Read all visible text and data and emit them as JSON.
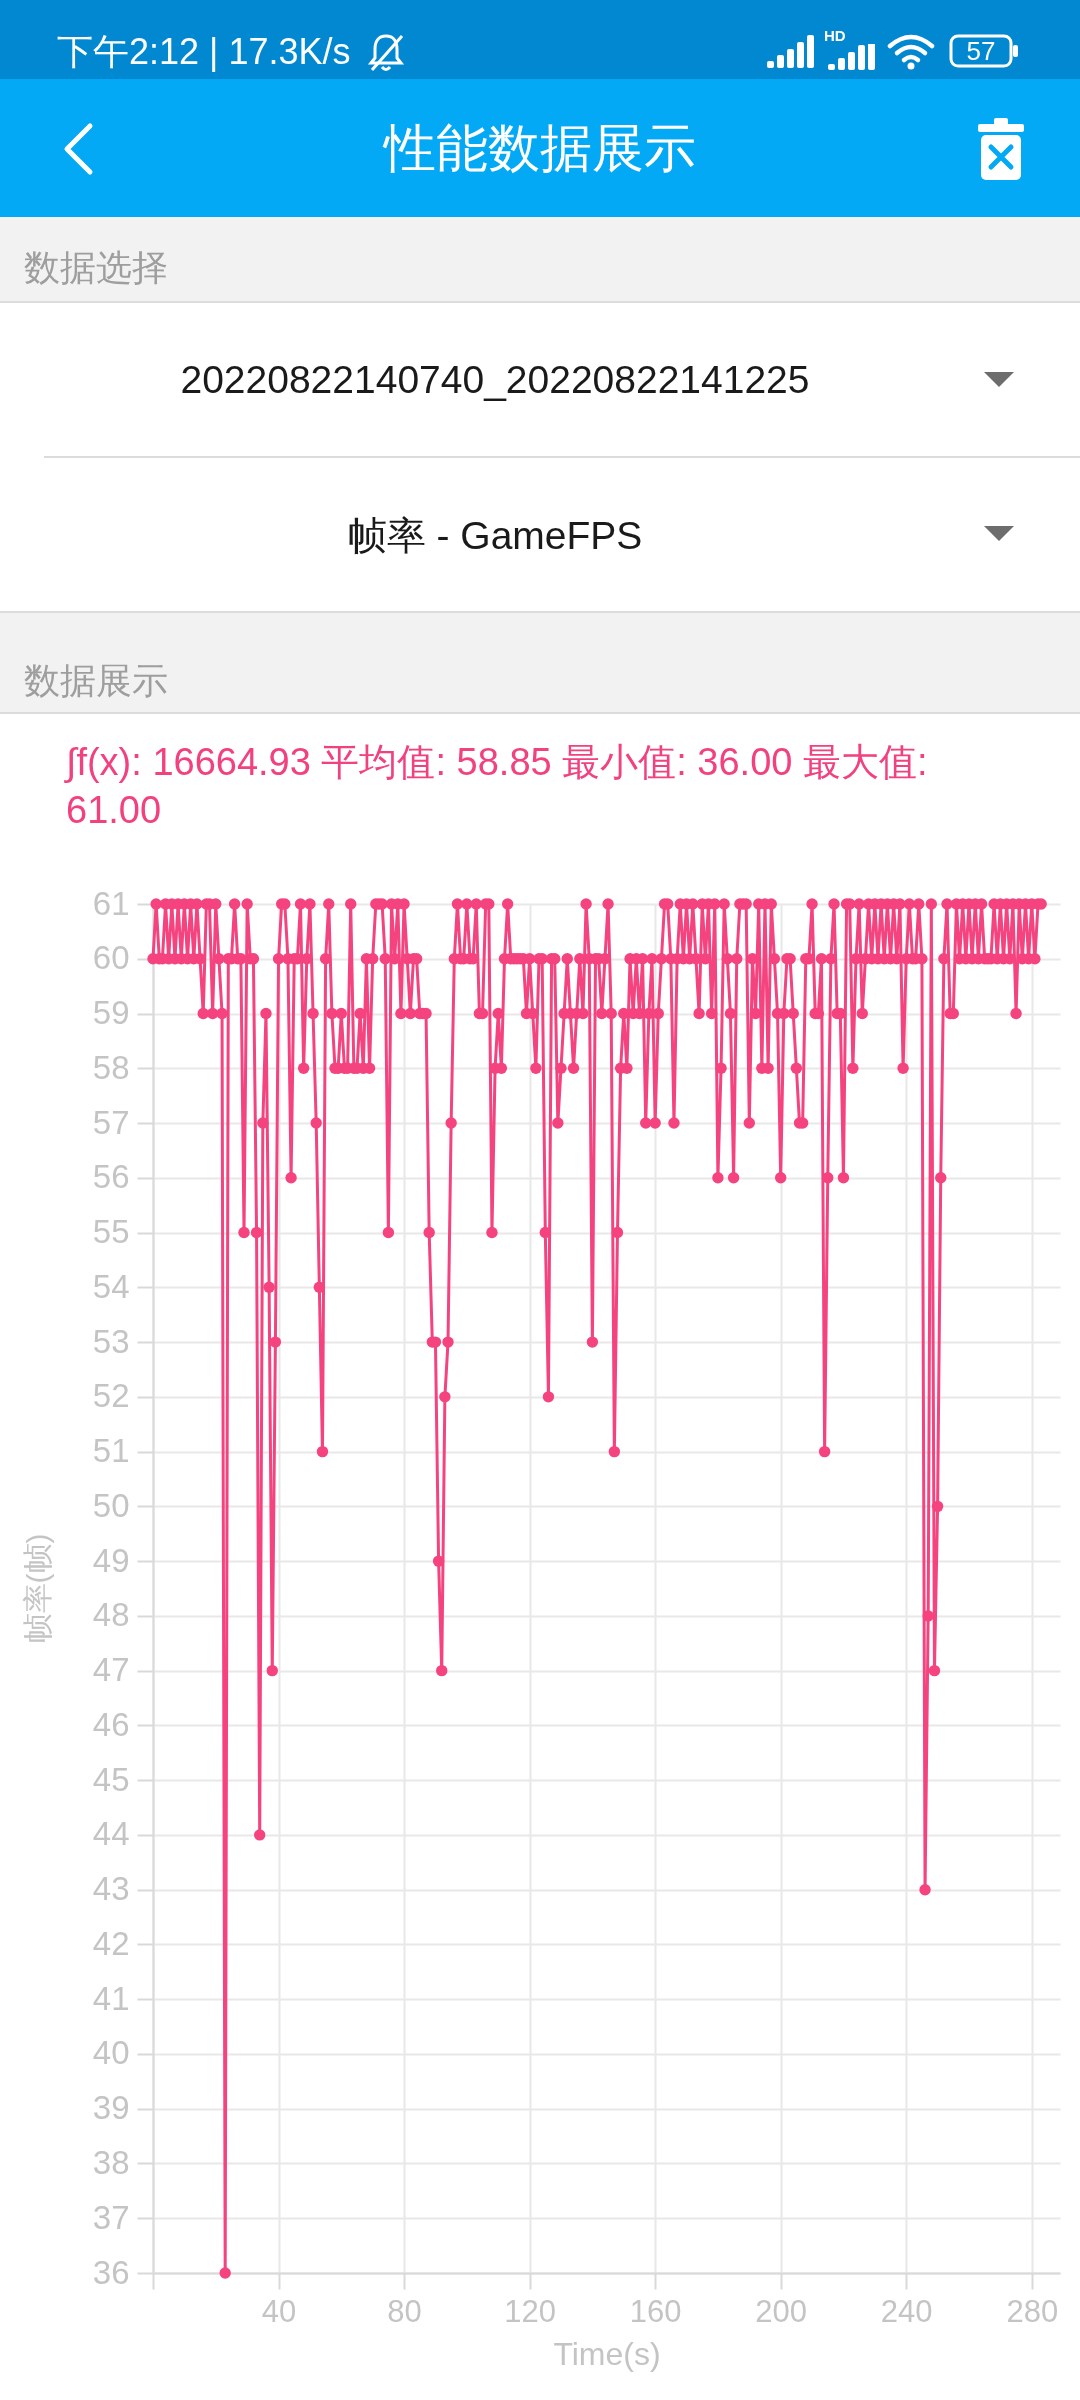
{
  "chart_data": {
    "type": "line",
    "title": "性能数据展示",
    "xlabel": "Time(s)",
    "ylabel": "帧率(帧)",
    "annotations": [
      "下午2:12 | 17.3K/s",
      "HD",
      "57",
      "数据选择",
      "20220822140740_20220822141225",
      "帧率 - GameFPS",
      "数据展示",
      "∫f(x): 16664.93 平均值: 58.85 最小值: 36.00 最大值: 61.00"
    ],
    "x": [
      0,
      1,
      2,
      3,
      4,
      5,
      6,
      7,
      8,
      9,
      10,
      11,
      12,
      13,
      14,
      15,
      16,
      17,
      18,
      19,
      20,
      21,
      22,
      23,
      24,
      25,
      26,
      27,
      28,
      29,
      30,
      31,
      32,
      33,
      34,
      35,
      36,
      37,
      38,
      39,
      40,
      41,
      42,
      43,
      44,
      45,
      46,
      47,
      48,
      49,
      50,
      51,
      52,
      53,
      54,
      55,
      56,
      57,
      58,
      59,
      60,
      61,
      62,
      63,
      64,
      65,
      66,
      67,
      68,
      69,
      70,
      71,
      72,
      73,
      74,
      75,
      76,
      77,
      78,
      79,
      80,
      81,
      82,
      83,
      84,
      85,
      86,
      87,
      88,
      89,
      90,
      91,
      92,
      93,
      94,
      95,
      96,
      97,
      98,
      99,
      100,
      101,
      102,
      103,
      104,
      105,
      106,
      107,
      108,
      109,
      110,
      111,
      112,
      113,
      114,
      115,
      116,
      117,
      118,
      119,
      120,
      121,
      122,
      123,
      124,
      125,
      126,
      127,
      128,
      129,
      130,
      131,
      132,
      133,
      134,
      135,
      136,
      137,
      138,
      139,
      140,
      141,
      142,
      143,
      144,
      145,
      146,
      147,
      148,
      149,
      150,
      151,
      152,
      153,
      154,
      155,
      156,
      157,
      158,
      159,
      160,
      161,
      162,
      163,
      164,
      165,
      166,
      167,
      168,
      169,
      170,
      171,
      172,
      173,
      174,
      175,
      176,
      177,
      178,
      179,
      180,
      181,
      182,
      183,
      184,
      185,
      186,
      187,
      188,
      189,
      190,
      191,
      192,
      193,
      194,
      195,
      196,
      197,
      198,
      199,
      200,
      201,
      202,
      203,
      204,
      205,
      206,
      207,
      208,
      209,
      210,
      211,
      212,
      213,
      214,
      215,
      216,
      217,
      218,
      219,
      220,
      221,
      222,
      223,
      224,
      225,
      226,
      227,
      228,
      229,
      230,
      231,
      232,
      233,
      234,
      235,
      236,
      237,
      238,
      239,
      240,
      241,
      242,
      243,
      244,
      245,
      246,
      247,
      248,
      249,
      250,
      251,
      252,
      253,
      254,
      255,
      256,
      257,
      258,
      259,
      260,
      261,
      262,
      263,
      264,
      265,
      266,
      267,
      268,
      269,
      270,
      271,
      272,
      273,
      274,
      275,
      276,
      277,
      278,
      279,
      280,
      281,
      282,
      283
    ],
    "series": [
      {
        "color": "#f5437f",
        "values": [
          60,
          61,
          60,
          60,
          61,
          60,
          61,
          60,
          61,
          60,
          61,
          60,
          61,
          60,
          61,
          60,
          59,
          61,
          61,
          59,
          61,
          60,
          59,
          36,
          60,
          60,
          61,
          60,
          60,
          55,
          61,
          60,
          60,
          55,
          44,
          57,
          59,
          54,
          47,
          53,
          60,
          61,
          61,
          60,
          56,
          60,
          60,
          61,
          58,
          60,
          61,
          59,
          57,
          54,
          51,
          60,
          61,
          59,
          58,
          58,
          59,
          58,
          58,
          61,
          58,
          58,
          59,
          58,
          60,
          58,
          60,
          61,
          61,
          61,
          60,
          55,
          61,
          60,
          61,
          59,
          61,
          60,
          59,
          60,
          60,
          59,
          59,
          59,
          55,
          53,
          53,
          49,
          47,
          52,
          53,
          57,
          60,
          61,
          60,
          60,
          61,
          60,
          60,
          61,
          59,
          59,
          61,
          61,
          55,
          58,
          59,
          58,
          60,
          61,
          60,
          60,
          60,
          60,
          60,
          59,
          60,
          59,
          58,
          60,
          60,
          55,
          52,
          60,
          60,
          57,
          58,
          59,
          60,
          59,
          58,
          59,
          60,
          59,
          61,
          60,
          53,
          60,
          60,
          59,
          60,
          61,
          59,
          51,
          55,
          58,
          59,
          58,
          60,
          59,
          60,
          59,
          60,
          57,
          59,
          60,
          57,
          59,
          60,
          61,
          61,
          60,
          57,
          60,
          61,
          60,
          61,
          60,
          61,
          60,
          59,
          61,
          60,
          61,
          59,
          61,
          56,
          58,
          61,
          60,
          59,
          56,
          60,
          61,
          61,
          61,
          57,
          60,
          59,
          61,
          58,
          61,
          58,
          61,
          60,
          59,
          56,
          59,
          60,
          60,
          59,
          58,
          57,
          57,
          60,
          60,
          61,
          59,
          59,
          60,
          51,
          56,
          60,
          61,
          59,
          59,
          56,
          61,
          61,
          58,
          60,
          61,
          59,
          60,
          61,
          60,
          61,
          60,
          61,
          60,
          61,
          60,
          61,
          60,
          61,
          58,
          60,
          61,
          60,
          60,
          61,
          60,
          43,
          48,
          61,
          47,
          50,
          56,
          60,
          61,
          59,
          59,
          61,
          60,
          61,
          60,
          61,
          60,
          61,
          60,
          61,
          60,
          60,
          60,
          61,
          60,
          61,
          60,
          61,
          60,
          61,
          59,
          61,
          60,
          61,
          60,
          61,
          60,
          61,
          61
        ]
      }
    ],
    "xlim": [
      0,
      289
    ],
    "xticks": [
      {
        "value": 0,
        "label": null
      },
      40,
      80,
      120,
      160,
      200,
      240,
      280
    ],
    "ylim": [
      36,
      61
    ],
    "yticks": [
      36,
      37,
      38,
      39,
      40,
      41,
      42,
      43,
      44,
      45,
      46,
      47,
      48,
      49,
      50,
      51,
      52,
      53,
      54,
      55,
      56,
      57,
      58,
      59,
      60,
      61
    ],
    "grid": true,
    "marker": "circle",
    "line_style": "solid"
  }
}
